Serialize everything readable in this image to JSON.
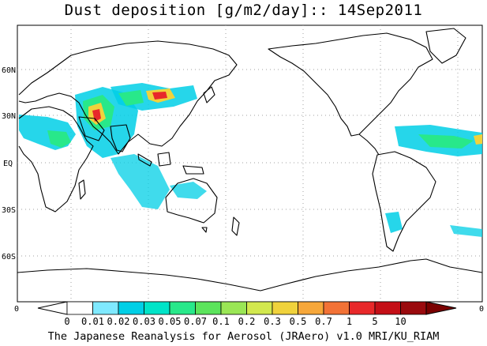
{
  "title": "Dust deposition [g/m2/day]:: 14Sep2011",
  "credit": "The Japanese Reanalysis for Aerosol (JRAero) v1.0 MRI/KU_RIAM",
  "map": {
    "projection": "equirectangular",
    "center_longitude": 180,
    "lat_range": [
      -90,
      90
    ],
    "lat_ticks": [
      {
        "lat": 60,
        "label": "60N"
      },
      {
        "lat": 30,
        "label": "30N"
      },
      {
        "lat": 0,
        "label": "EQ"
      },
      {
        "lat": -30,
        "label": "30S"
      },
      {
        "lat": -60,
        "label": "60S"
      }
    ],
    "bottom_left_label": "0",
    "bottom_right_label": "0",
    "grid": "dotted"
  },
  "colorbar": {
    "labels": [
      "0",
      "0.01",
      "0.02",
      "0.03",
      "0.05",
      "0.07",
      "0.1",
      "0.2",
      "0.3",
      "0.5",
      "0.7",
      "1",
      "5",
      "10"
    ],
    "colors": [
      "#ffffff",
      "#ffffff",
      "#7fe9ff",
      "#00cfe6",
      "#00e4c8",
      "#28e88a",
      "#5ce45c",
      "#9ae655",
      "#d2e84e",
      "#f0d23c",
      "#f6a73a",
      "#f27236",
      "#e8282a",
      "#c40f17",
      "#9a0a0e",
      "#7a0000"
    ]
  },
  "colors": {
    "coast": "#000000",
    "grid": "#a0a0a0",
    "low": "#00cfe6",
    "mid": "#28e88a",
    "high": "#f0d23c",
    "peak": "#e8282a"
  }
}
